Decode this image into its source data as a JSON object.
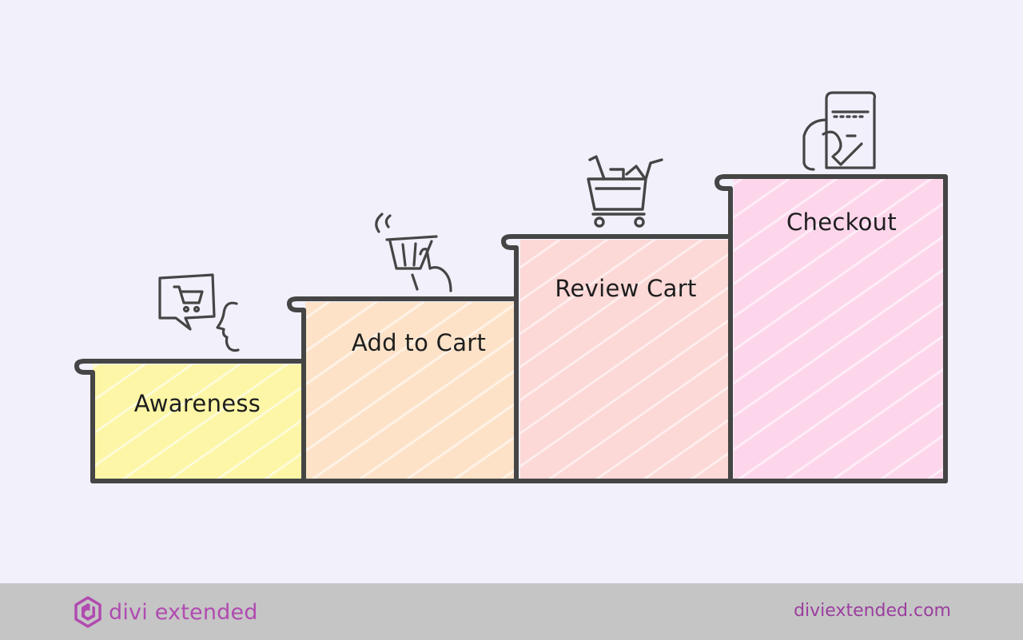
{
  "steps": [
    {
      "label": "Awareness",
      "color": "#fcf6a6",
      "icon": "speech-bubble-cart-icon"
    },
    {
      "label": "Add to Cart",
      "color": "#fde2c8",
      "icon": "hand-basket-icon"
    },
    {
      "label": "Review Cart",
      "color": "#fcd8d6",
      "icon": "shopping-cart-icon"
    },
    {
      "label": "Checkout",
      "color": "#fdd6ec",
      "icon": "receipt-payment-icon"
    }
  ],
  "stroke_color": "#454545",
  "footer": {
    "brand_name": "divi extended",
    "brand_color": "#b04bb0",
    "brand_icon": "divi-extended-logo-icon",
    "url": "diviextended.com",
    "background": "#c5c5c5"
  }
}
